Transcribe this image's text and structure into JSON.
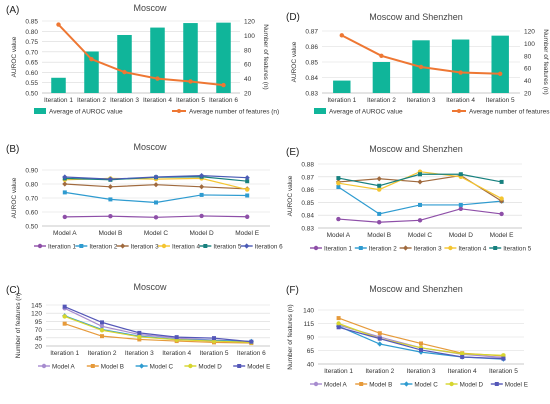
{
  "figure": {
    "panels": [
      {
        "letter": "(A)",
        "title": "Moscow"
      },
      {
        "letter": "(D)",
        "title": "Moscow and Shenzhen"
      },
      {
        "letter": "(B)",
        "title": "Moscow"
      },
      {
        "letter": "(E)",
        "title": "Moscow and Shenzhen"
      },
      {
        "letter": "(C)",
        "title": "Moscow"
      },
      {
        "letter": "(F)",
        "title": "Moscow and Shenzhen"
      }
    ]
  },
  "colors": {
    "bar": "#10b59a",
    "line_features": "#ee7733",
    "model_a": "#a78ccf",
    "model_b": "#e69a3a",
    "model_c": "#2e9bd0",
    "model_d": "#d6d52e",
    "model_e": "#5457b8",
    "iter_1": "#8e4fa8",
    "iter_2": "#2e9bd0",
    "iter_3": "#a06a3e",
    "iter_4": "#f4c530",
    "iter_5": "#17807e",
    "iter_6": "#4b5bb5",
    "grid": "#d9d9d9",
    "axis_text": "#333333"
  },
  "chart_data": [
    {
      "id": "A",
      "type": "bar",
      "title": "Moscow",
      "categories": [
        "Iteration 1",
        "Iteration 2",
        "Iteration 3",
        "Iteration 4",
        "Iteration 5",
        "Iteration 6"
      ],
      "ylabel": "AUROC value",
      "ylim": [
        0.5,
        0.85
      ],
      "yticks": [
        "0.50",
        "0.55",
        "0.60",
        "0.65",
        "0.70",
        "0.75",
        "0.80",
        "0.85"
      ],
      "y2label": "Number of features (n)",
      "y2lim": [
        20,
        120
      ],
      "y2ticks": [
        "20",
        "40",
        "60",
        "80",
        "100",
        "120"
      ],
      "series": [
        {
          "name": "Average of AUROC value",
          "kind": "bar",
          "values": [
            0.574,
            0.702,
            0.782,
            0.818,
            0.84,
            0.842
          ]
        },
        {
          "name": "Average number of features (n)",
          "kind": "line",
          "axis": "right",
          "values": [
            115,
            67,
            49,
            40,
            36,
            31
          ]
        }
      ],
      "legend": "bottom"
    },
    {
      "id": "D",
      "type": "bar",
      "title": "Moscow and Shenzhen",
      "categories": [
        "Iteration 1",
        "Iteration 2",
        "Iteration 3",
        "Iteration 4",
        "Iteration 5"
      ],
      "ylabel": "AUROC value",
      "ylim": [
        0.83,
        0.87
      ],
      "yticks": [
        "0.83",
        "0.84",
        "0.85",
        "0.86",
        "0.87"
      ],
      "y2label": "Number of features (n)",
      "y2lim": [
        20,
        120
      ],
      "y2ticks": [
        "20",
        "40",
        "60",
        "80",
        "100",
        "120"
      ],
      "series": [
        {
          "name": "Average of AUROC value",
          "kind": "bar",
          "values": [
            0.838,
            0.85,
            0.864,
            0.8645,
            0.867
          ]
        },
        {
          "name": "Average number of features (n)",
          "kind": "line",
          "axis": "right",
          "values": [
            113,
            80,
            62,
            53,
            51
          ]
        }
      ],
      "legend": "bottom"
    },
    {
      "id": "B",
      "type": "line",
      "title": "Moscow",
      "categories": [
        "Model A",
        "Model B",
        "Model C",
        "Model D",
        "Model E"
      ],
      "ylabel": "AUROC value",
      "ylim": [
        0.5,
        0.9
      ],
      "yticks": [
        "0.50",
        "0.60",
        "0.70",
        "0.80",
        "0.90"
      ],
      "series": [
        {
          "name": "Iteration 1",
          "values": [
            0.565,
            0.57,
            0.562,
            0.572,
            0.566
          ]
        },
        {
          "name": "Iteration 2",
          "values": [
            0.74,
            0.69,
            0.668,
            0.722,
            0.718
          ]
        },
        {
          "name": "Iteration 3",
          "values": [
            0.8,
            0.78,
            0.795,
            0.78,
            0.765
          ]
        },
        {
          "name": "Iteration 4",
          "values": [
            0.83,
            0.84,
            0.835,
            0.84,
            0.76
          ]
        },
        {
          "name": "Iteration 5",
          "values": [
            0.84,
            0.83,
            0.848,
            0.852,
            0.82
          ]
        },
        {
          "name": "Iteration 6",
          "values": [
            0.85,
            0.835,
            0.85,
            0.86,
            0.845
          ]
        }
      ],
      "legend": "bottom"
    },
    {
      "id": "E",
      "type": "line",
      "title": "Moscow and Shenzhen",
      "categories": [
        "Model A",
        "Model B",
        "Model C",
        "Model D",
        "Model E"
      ],
      "ylabel": "AUROC value",
      "ylim": [
        0.83,
        0.88
      ],
      "yticks": [
        "0.83",
        "0.84",
        "0.85",
        "0.86",
        "0.87",
        "0.88"
      ],
      "series": [
        {
          "name": "Iteration 1",
          "values": [
            0.837,
            0.8345,
            0.836,
            0.845,
            0.841
          ]
        },
        {
          "name": "Iteration 2",
          "values": [
            0.862,
            0.841,
            0.848,
            0.848,
            0.851
          ]
        },
        {
          "name": "Iteration 3",
          "values": [
            0.866,
            0.8685,
            0.866,
            0.871,
            0.851
          ]
        },
        {
          "name": "Iteration 4",
          "values": [
            0.865,
            0.86,
            0.874,
            0.87,
            0.853
          ]
        },
        {
          "name": "Iteration 5",
          "values": [
            0.869,
            0.863,
            0.872,
            0.872,
            0.866
          ]
        }
      ],
      "legend": "bottom"
    },
    {
      "id": "C",
      "type": "line",
      "title": "Moscow",
      "categories": [
        "Iteration 1",
        "Iteration 2",
        "Iteration 3",
        "Iteration 4",
        "Iteration 5",
        "Iteration 6"
      ],
      "ylabel": "Number of features (n)",
      "ylim": [
        20,
        145
      ],
      "yticks": [
        "20",
        "45",
        "70",
        "95",
        "120",
        "145"
      ],
      "series": [
        {
          "name": "Model A",
          "values": [
            135,
            80,
            55,
            44,
            38,
            32
          ]
        },
        {
          "name": "Model B",
          "values": [
            88,
            50,
            40,
            35,
            31,
            29
          ]
        },
        {
          "name": "Model C",
          "values": [
            112,
            70,
            50,
            40,
            37,
            34
          ]
        },
        {
          "name": "Model D",
          "values": [
            110,
            68,
            48,
            39,
            35,
            31
          ]
        },
        {
          "name": "Model E",
          "values": [
            140,
            92,
            60,
            47,
            44,
            33
          ]
        }
      ],
      "legend": "bottom"
    },
    {
      "id": "F",
      "type": "line",
      "title": "Moscow and Shenzhen",
      "categories": [
        "Iteration 1",
        "Iteration 2",
        "Iteration 3",
        "Iteration 4",
        "Iteration 5"
      ],
      "ylabel": "Number of features (n)",
      "ylim": [
        40,
        140
      ],
      "yticks": [
        "40",
        "65",
        "90",
        "115",
        "140"
      ],
      "series": [
        {
          "name": "Model A",
          "values": [
            112,
            90,
            70,
            58,
            52
          ]
        },
        {
          "name": "Model B",
          "values": [
            125,
            97,
            78,
            60,
            55
          ]
        },
        {
          "name": "Model C",
          "values": [
            110,
            77,
            62,
            53,
            49
          ]
        },
        {
          "name": "Model D",
          "values": [
            115,
            87,
            70,
            59,
            56
          ]
        },
        {
          "name": "Model E",
          "values": [
            108,
            87,
            66,
            53,
            50
          ]
        }
      ],
      "legend": "bottom"
    }
  ]
}
